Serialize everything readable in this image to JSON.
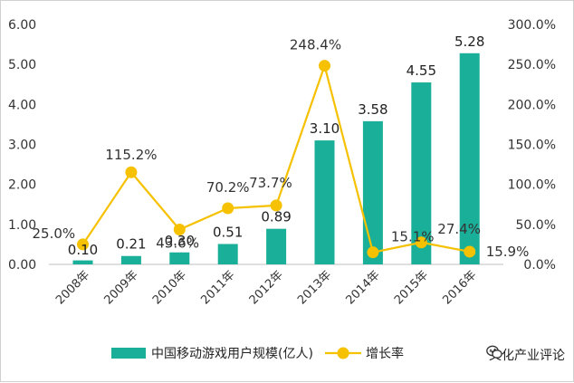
{
  "chart_data": {
    "type": "bar",
    "categories": [
      "2008年",
      "2009年",
      "2010年",
      "2011年",
      "2012年",
      "2013年",
      "2014年",
      "2015年",
      "2016年"
    ],
    "series": [
      {
        "name": "中国移动游戏用户规模(亿人)",
        "type": "bar",
        "axis": "left",
        "values": [
          0.1,
          0.21,
          0.3,
          0.51,
          0.89,
          3.1,
          3.58,
          4.55,
          5.28
        ],
        "labels": [
          "0.10",
          "0.21",
          "0.30",
          "0.51",
          "0.89",
          "3.10",
          "3.58",
          "4.55",
          "5.28"
        ],
        "color": "#1aaf98"
      },
      {
        "name": "增长率",
        "type": "line",
        "axis": "right",
        "values": [
          25.0,
          115.2,
          43.6,
          70.2,
          73.7,
          248.4,
          15.1,
          27.4,
          15.9
        ],
        "labels": [
          "25.0%",
          "115.2%",
          "43.6%",
          "70.2%",
          "73.7%",
          "248.4%",
          "15.1%",
          "27.4%",
          "15.9%"
        ],
        "color": "#f5c100"
      }
    ],
    "y_left": {
      "min": 0,
      "max": 6,
      "ticks": [
        "0.00",
        "1.00",
        "2.00",
        "3.00",
        "4.00",
        "5.00",
        "6.00"
      ]
    },
    "y_right": {
      "min": 0,
      "max": 300,
      "ticks": [
        "0.0%",
        "50.0%",
        "100.0%",
        "150.0%",
        "200.0%",
        "250.0%",
        "300.0%"
      ]
    },
    "grid": false,
    "legend": "bottom"
  },
  "legend": {
    "bar_label": "中国移动游戏用户规模(亿人)",
    "line_label": "增长率"
  },
  "watermark": {
    "text": "文化产业评论"
  }
}
